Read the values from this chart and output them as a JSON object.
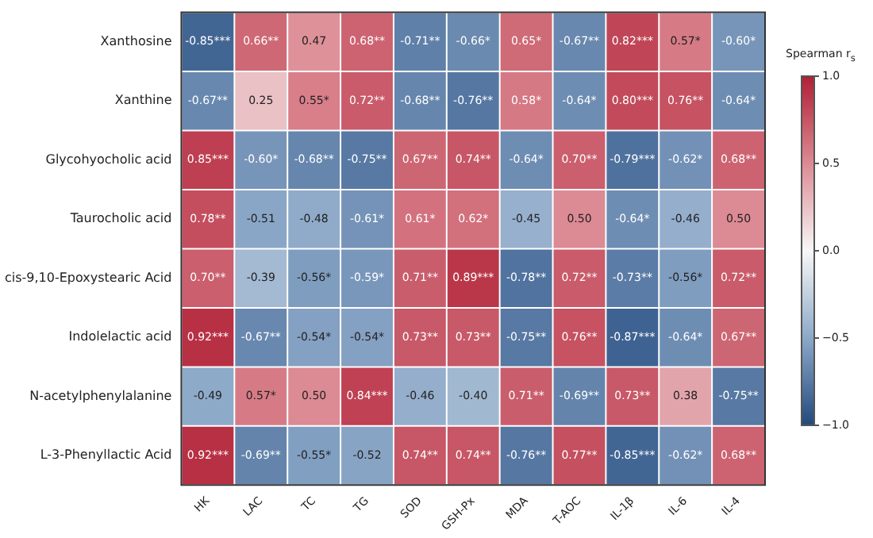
{
  "chart_data": {
    "type": "heatmap",
    "clabel": "Spearman r$_{s}$",
    "categories": [
      "HK",
      "LAC",
      "TC",
      "TG",
      "SOD",
      "GSH-Px",
      "MDA",
      "T-AOC",
      "IL-1β",
      "IL-6",
      "IL-4"
    ],
    "y_categories": [
      "Xanthosine",
      "Xanthine",
      "Glycohyocholic acid",
      "Taurocholic acid",
      "cis-9,10-Epoxystearic Acid",
      "Indolelactic acid",
      "N-acetylphenylalanine",
      "L-3-Phenyllactic Acid"
    ],
    "cells": [
      [
        -0.85,
        0.66,
        0.47,
        0.68,
        -0.71,
        -0.66,
        0.65,
        -0.67,
        0.82,
        0.57,
        -0.6
      ],
      [
        -0.67,
        0.25,
        0.55,
        0.72,
        -0.68,
        -0.76,
        0.58,
        -0.64,
        0.8,
        0.76,
        -0.64
      ],
      [
        0.85,
        -0.6,
        -0.68,
        -0.75,
        0.67,
        0.74,
        -0.64,
        0.7,
        -0.79,
        -0.62,
        0.68
      ],
      [
        0.78,
        -0.51,
        -0.48,
        -0.61,
        0.61,
        0.62,
        -0.45,
        0.5,
        -0.64,
        -0.46,
        0.5
      ],
      [
        0.7,
        -0.39,
        -0.56,
        -0.59,
        0.71,
        0.89,
        -0.78,
        0.72,
        -0.73,
        -0.56,
        0.72
      ],
      [
        0.92,
        -0.67,
        -0.54,
        -0.54,
        0.73,
        0.73,
        -0.75,
        0.76,
        -0.87,
        -0.64,
        0.67
      ],
      [
        -0.49,
        0.57,
        0.5,
        0.84,
        -0.46,
        -0.4,
        0.71,
        -0.69,
        0.73,
        0.38,
        -0.75
      ],
      [
        0.92,
        -0.69,
        -0.55,
        -0.52,
        0.74,
        0.74,
        -0.76,
        0.77,
        -0.85,
        -0.62,
        0.68
      ]
    ],
    "cell_labels": [
      [
        "-0.85***",
        "0.66**",
        "0.47",
        "0.68**",
        "-0.71**",
        "-0.66*",
        "0.65*",
        "-0.67**",
        "0.82***",
        "0.57*",
        "-0.60*"
      ],
      [
        "-0.67**",
        "0.25",
        "0.55*",
        "0.72**",
        "-0.68**",
        "-0.76**",
        "0.58*",
        "-0.64*",
        "0.80***",
        "0.76**",
        "-0.64*"
      ],
      [
        "0.85***",
        "-0.60*",
        "-0.68**",
        "-0.75**",
        "0.67**",
        "0.74**",
        "-0.64*",
        "0.70**",
        "-0.79***",
        "-0.62*",
        "0.68**"
      ],
      [
        "0.78**",
        "-0.51",
        "-0.48",
        "-0.61*",
        "0.61*",
        "0.62*",
        "-0.45",
        "0.50",
        "-0.64*",
        "-0.46",
        "0.50"
      ],
      [
        "0.70**",
        "-0.39",
        "-0.56*",
        "-0.59*",
        "0.71**",
        "0.89***",
        "-0.78**",
        "0.72**",
        "-0.73**",
        "-0.56*",
        "0.72**"
      ],
      [
        "0.92***",
        "-0.67**",
        "-0.54*",
        "-0.54*",
        "0.73**",
        "0.73**",
        "-0.75**",
        "0.76**",
        "-0.87***",
        "-0.64*",
        "0.67**"
      ],
      [
        "-0.49",
        "0.57*",
        "0.50",
        "0.84***",
        "-0.46",
        "-0.40",
        "0.71**",
        "-0.69**",
        "0.73**",
        "0.38",
        "-0.75**"
      ],
      [
        "0.92***",
        "-0.69**",
        "-0.55*",
        "-0.52",
        "0.74**",
        "0.74**",
        "-0.76**",
        "0.77**",
        "-0.85***",
        "-0.62*",
        "0.68**"
      ]
    ],
    "clim": [
      -1,
      1
    ],
    "cticks": [
      {
        "value": 1,
        "label": "1.0"
      },
      {
        "value": 0.5,
        "label": "0.5"
      },
      {
        "value": 0,
        "label": "0.0"
      },
      {
        "value": -0.5,
        "label": "−0.5"
      },
      {
        "value": -1,
        "label": "−1.0"
      }
    ]
  }
}
